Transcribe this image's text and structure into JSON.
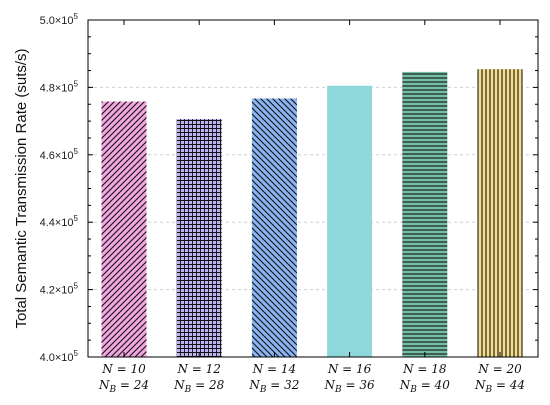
{
  "chart_data": {
    "type": "bar",
    "ylabel": "Total Semantic Transmission Rate (suts/s)",
    "xlabel": "",
    "ylim": [
      400000,
      500000
    ],
    "grid": "horizontal dashed",
    "categories": [
      {
        "line1": "N = 10",
        "line2": "N_B = 24"
      },
      {
        "line1": "N = 12",
        "line2": "N_B = 28"
      },
      {
        "line1": "N = 14",
        "line2": "N_B = 32"
      },
      {
        "line1": "N = 16",
        "line2": "N_B = 36"
      },
      {
        "line1": "N = 18",
        "line2": "N_B = 40"
      },
      {
        "line1": "N = 20",
        "line2": "N_B = 44"
      }
    ],
    "values": [
      475800,
      470600,
      476700,
      480500,
      484600,
      485400
    ],
    "yticks": [
      {
        "value": 400000,
        "mantissa": "4.0×10",
        "exp": "5"
      },
      {
        "value": 420000,
        "mantissa": "4.2×10",
        "exp": "5"
      },
      {
        "value": 440000,
        "mantissa": "4.4×10",
        "exp": "5"
      },
      {
        "value": 460000,
        "mantissa": "4.6×10",
        "exp": "5"
      },
      {
        "value": 480000,
        "mantissa": "4.8×10",
        "exp": "5"
      },
      {
        "value": 500000,
        "mantissa": "5.0×10",
        "exp": "5"
      }
    ],
    "bar_colors": [
      "#f2a6e0",
      "#bdb1f2",
      "#8ab4f2",
      "#8ed8dc",
      "#74bea6",
      "#f8e08a"
    ],
    "bar_hatches": [
      "diag-fwd",
      "grid",
      "diag-back",
      "none",
      "horizontal",
      "vertical"
    ]
  }
}
